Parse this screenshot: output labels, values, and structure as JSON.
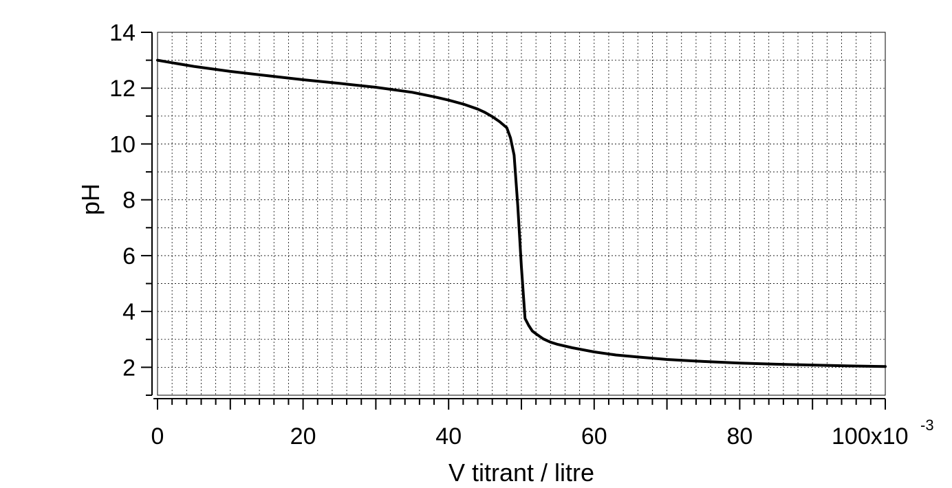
{
  "chart_data": {
    "type": "line",
    "xlabel": "V titrant / litre",
    "ylabel": "pH",
    "x_multiplier_label": "x10",
    "x_multiplier_exponent": "-3",
    "xlim": [
      0,
      100
    ],
    "ylim": [
      1,
      14
    ],
    "x_ticks": [
      0,
      20,
      40,
      60,
      80,
      100
    ],
    "x_tick_labels": [
      "0",
      "20",
      "40",
      "60",
      "80",
      "100"
    ],
    "y_ticks": [
      2,
      4,
      6,
      8,
      10,
      12,
      14
    ],
    "y_tick_labels": [
      "2",
      "4",
      "6",
      "8",
      "10",
      "12",
      "14"
    ],
    "grid": true,
    "line_color": "#000000",
    "series": [
      {
        "x": [
          0,
          2,
          5,
          10,
          15,
          20,
          25,
          30,
          35,
          38,
          40,
          42,
          44,
          45,
          46,
          47,
          48,
          48.5,
          49,
          49.5,
          50,
          50.5,
          51,
          51.5,
          52,
          53,
          54,
          55,
          57,
          60,
          63,
          66,
          70,
          75,
          80,
          85,
          90,
          95,
          100
        ],
        "y": [
          13.0,
          12.91,
          12.78,
          12.6,
          12.45,
          12.3,
          12.17,
          12.03,
          11.85,
          11.69,
          11.57,
          11.43,
          11.25,
          11.13,
          10.98,
          10.8,
          10.58,
          10.22,
          9.6,
          7.8,
          5.6,
          3.75,
          3.5,
          3.3,
          3.2,
          3.02,
          2.9,
          2.82,
          2.7,
          2.55,
          2.44,
          2.37,
          2.28,
          2.21,
          2.15,
          2.11,
          2.08,
          2.05,
          2.03
        ]
      }
    ]
  }
}
